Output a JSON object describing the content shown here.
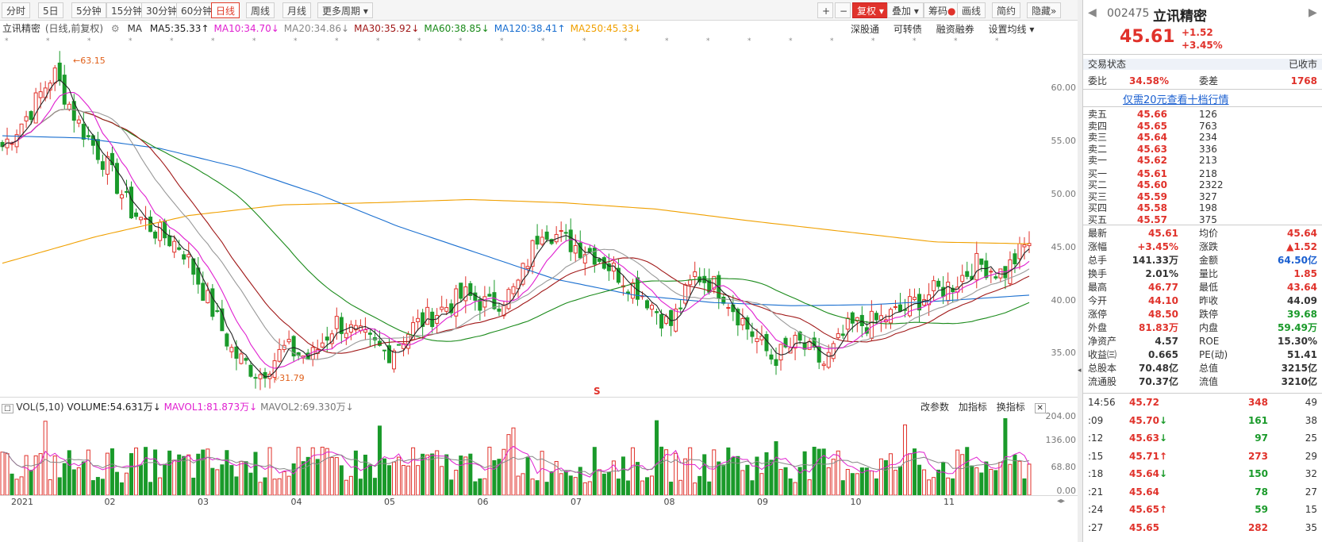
{
  "toolbar": {
    "periods": [
      "分时",
      "5日",
      "5分钟",
      "15分钟",
      "30分钟",
      "60分钟",
      "日线",
      "周线",
      "月线",
      "更多周期"
    ],
    "active": "日线",
    "right_buttons": [
      "+",
      "−",
      "复权",
      "叠加",
      "筹码",
      "画线",
      "简约",
      "隐藏"
    ]
  },
  "ma_line": {
    "name": "立讯精密",
    "mode": "(日线,前复权)",
    "ma_label": "MA",
    "items": [
      {
        "text": "MA5:35.33",
        "arrow": "↑",
        "color": "#222"
      },
      {
        "text": "MA10:34.70",
        "arrow": "↓",
        "color": "#e020d0"
      },
      {
        "text": "MA20:34.86",
        "arrow": "↓",
        "color": "#888"
      },
      {
        "text": "MA30:35.92",
        "arrow": "↓",
        "color": "#a01818"
      },
      {
        "text": "MA60:38.85",
        "arrow": "↓",
        "color": "#1a8a1a"
      },
      {
        "text": "MA120:38.41",
        "arrow": "↑",
        "color": "#1a6fd0"
      },
      {
        "text": "MA250:45.33",
        "arrow": "↓",
        "color": "#f0a000"
      }
    ],
    "links": [
      "深股通",
      "可转债",
      "融资融券",
      "设置均线"
    ]
  },
  "price_axis": [
    "60.00",
    "55.00",
    "50.00",
    "45.00",
    "40.00",
    "35.00"
  ],
  "annotations": {
    "high": "63.15",
    "low": "31.79",
    "s_mark": "S"
  },
  "vol_header": {
    "label": "VOL(5,10)",
    "volume": "VOLUME:54.631万",
    "mavol1": "MAVOL1:81.873万",
    "mavol2": "MAVOL2:69.330万",
    "buttons": [
      "改参数",
      "加指标",
      "换指标"
    ]
  },
  "vol_axis": [
    "204.00",
    "136.00",
    "68.80",
    "0.00"
  ],
  "months": [
    "2021",
    "02",
    "03",
    "04",
    "05",
    "06",
    "07",
    "08",
    "09",
    "10",
    "11"
  ],
  "chart_data": {
    "type": "candlestick",
    "title": "立讯精密 (日线,前复权)",
    "ylim": [
      31,
      65
    ],
    "x": [
      "2021-01",
      "2021-02",
      "2021-03",
      "2021-04",
      "2021-05",
      "2021-06",
      "2021-07",
      "2021-08",
      "2021-09",
      "2021-10",
      "2021-11"
    ],
    "close_path": [
      54.5,
      57.5,
      61.5,
      56.5,
      53.0,
      48.5,
      46.5,
      45.0,
      40.0,
      35.0,
      33.0,
      35.5,
      34.5,
      38.0,
      36.5,
      35.0,
      37.5,
      39.0,
      40.5,
      39.5,
      41.0,
      47.0,
      45.5,
      44.5,
      42.5,
      40.5,
      37.5,
      42.5,
      41.0,
      37.5,
      34.5,
      36.0,
      34.0,
      37.5,
      38.0,
      39.0,
      40.5,
      41.5,
      43.5,
      42.5,
      45.6
    ],
    "ma250_path": [
      43.5,
      46.0,
      48.0,
      49.0,
      49.2,
      49.5,
      49.2,
      48.6,
      47.5,
      46.5,
      45.5,
      45.33
    ],
    "ma120_path": [
      55.5,
      55.3,
      54.3,
      52.5,
      50.0,
      47.0,
      44.5,
      42.0,
      40.5,
      39.8,
      39.5,
      39.6,
      40.0,
      40.5
    ],
    "volume_ylim": [
      0,
      204
    ]
  },
  "quote": {
    "code": "002475",
    "name": "立讯精密",
    "price": "45.61",
    "change": "+1.52",
    "change_pct": "+3.45%",
    "status_label": "交易状态",
    "status": "已收市",
    "weibi_label": "委比",
    "weibi": "34.58%",
    "weicha_label": "委差",
    "weicha": "1768",
    "promo": "仅需20元查看十档行情",
    "asks": [
      {
        "label": "卖五",
        "price": "45.66",
        "vol": "126"
      },
      {
        "label": "卖四",
        "price": "45.65",
        "vol": "763"
      },
      {
        "label": "卖三",
        "price": "45.64",
        "vol": "234"
      },
      {
        "label": "卖二",
        "price": "45.63",
        "vol": "336"
      },
      {
        "label": "卖一",
        "price": "45.62",
        "vol": "213"
      }
    ],
    "bids": [
      {
        "label": "买一",
        "price": "45.61",
        "vol": "218"
      },
      {
        "label": "买二",
        "price": "45.60",
        "vol": "2322"
      },
      {
        "label": "买三",
        "price": "45.59",
        "vol": "327"
      },
      {
        "label": "买四",
        "price": "45.58",
        "vol": "198"
      },
      {
        "label": "买五",
        "price": "45.57",
        "vol": "375"
      }
    ],
    "stats": [
      [
        {
          "l": "最新",
          "v": "45.61",
          "c": "red"
        },
        {
          "l": "均价",
          "v": "45.64",
          "c": "red"
        }
      ],
      [
        {
          "l": "涨幅",
          "v": "+3.45%",
          "c": "red"
        },
        {
          "l": "涨跌",
          "v": "▲1.52",
          "c": "red"
        }
      ],
      [
        {
          "l": "总手",
          "v": "141.33万",
          "c": ""
        },
        {
          "l": "金额",
          "v": "64.50亿",
          "c": "blue"
        }
      ],
      [
        {
          "l": "换手",
          "v": "2.01%",
          "c": ""
        },
        {
          "l": "量比",
          "v": "1.85",
          "c": "red"
        }
      ],
      [
        {
          "l": "最高",
          "v": "46.77",
          "c": "red"
        },
        {
          "l": "最低",
          "v": "43.64",
          "c": "red"
        }
      ],
      [
        {
          "l": "今开",
          "v": "44.10",
          "c": "red"
        },
        {
          "l": "昨收",
          "v": "44.09",
          "c": ""
        }
      ],
      [
        {
          "l": "涨停",
          "v": "48.50",
          "c": "red"
        },
        {
          "l": "跌停",
          "v": "39.68",
          "c": "green"
        }
      ],
      [
        {
          "l": "外盘",
          "v": "81.83万",
          "c": "red"
        },
        {
          "l": "内盘",
          "v": "59.49万",
          "c": "green"
        }
      ],
      [
        {
          "l": "净资产",
          "v": "4.57",
          "c": ""
        },
        {
          "l": "ROE",
          "v": "15.30%",
          "c": ""
        }
      ],
      [
        {
          "l": "收益㈢",
          "v": "0.665",
          "c": ""
        },
        {
          "l": "PE(动)",
          "v": "51.41",
          "c": ""
        }
      ],
      [
        {
          "l": "总股本",
          "v": "70.48亿",
          "c": ""
        },
        {
          "l": "总值",
          "v": "3215亿",
          "c": ""
        }
      ],
      [
        {
          "l": "流通股",
          "v": "70.37亿",
          "c": ""
        },
        {
          "l": "流值",
          "v": "3210亿",
          "c": ""
        }
      ]
    ],
    "ticks": [
      {
        "t": "14:56",
        "p": "45.72",
        "v": "348",
        "n": "49",
        "arrow": "",
        "vc": "red"
      },
      {
        "t": ":09",
        "p": "45.70",
        "v": "161",
        "n": "38",
        "arrow": "↓",
        "vc": "green"
      },
      {
        "t": ":12",
        "p": "45.63",
        "v": "97",
        "n": "25",
        "arrow": "↓",
        "vc": "green"
      },
      {
        "t": ":15",
        "p": "45.71",
        "v": "273",
        "n": "29",
        "arrow": "↑",
        "vc": "red"
      },
      {
        "t": ":18",
        "p": "45.64",
        "v": "150",
        "n": "32",
        "arrow": "↓",
        "vc": "green"
      },
      {
        "t": ":21",
        "p": "45.64",
        "v": "78",
        "n": "27",
        "arrow": "",
        "vc": "green"
      },
      {
        "t": ":24",
        "p": "45.65",
        "v": "59",
        "n": "15",
        "arrow": "↑",
        "vc": "green"
      },
      {
        "t": ":27",
        "p": "45.65",
        "v": "282",
        "n": "35",
        "arrow": "",
        "vc": "red"
      }
    ]
  }
}
